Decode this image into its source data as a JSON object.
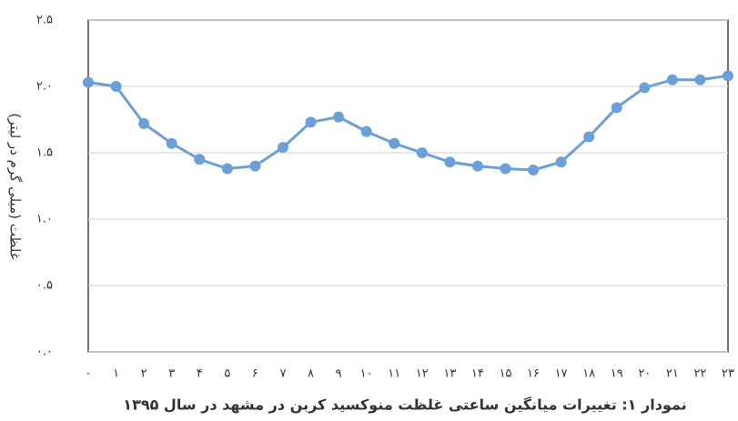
{
  "chart_data": {
    "type": "line",
    "title": "نمودار ۱: تغییرات میانگین ساعتی غلظت منوکسید کربن در مشهد در سال ۱۳۹۵",
    "y_label": "غلظت (میلی گرم در لیتر)",
    "categories": [
      "۰",
      "۱",
      "۲",
      "۳",
      "۴",
      "۵",
      "۶",
      "۷",
      "۸",
      "۹",
      "۱۰",
      "۱۱",
      "۱۲",
      "۱۳",
      "۱۴",
      "۱۵",
      "۱۶",
      "۱۷",
      "۱۸",
      "۱۹",
      "۲۰",
      "۲۱",
      "۲۲",
      "۲۳"
    ],
    "values": [
      2.03,
      2.0,
      1.72,
      1.57,
      1.45,
      1.38,
      1.4,
      1.54,
      1.73,
      1.77,
      1.66,
      1.57,
      1.5,
      1.43,
      1.4,
      1.38,
      1.37,
      1.43,
      1.62,
      1.84,
      1.99,
      2.05,
      2.05,
      2.08
    ],
    "color": "#6a9fd8",
    "ylim": [
      0,
      2.5
    ],
    "yticks": [
      {
        "value": 0,
        "label": "۰.۰"
      },
      {
        "value": 0.5,
        "label": "۰.۵"
      },
      {
        "value": 1,
        "label": "۱.۰"
      },
      {
        "value": 1.5,
        "label": "۱.۵"
      },
      {
        "value": 2,
        "label": "۲.۰"
      },
      {
        "value": 2.5,
        "label": "۲.۵"
      }
    ],
    "grid": true
  }
}
